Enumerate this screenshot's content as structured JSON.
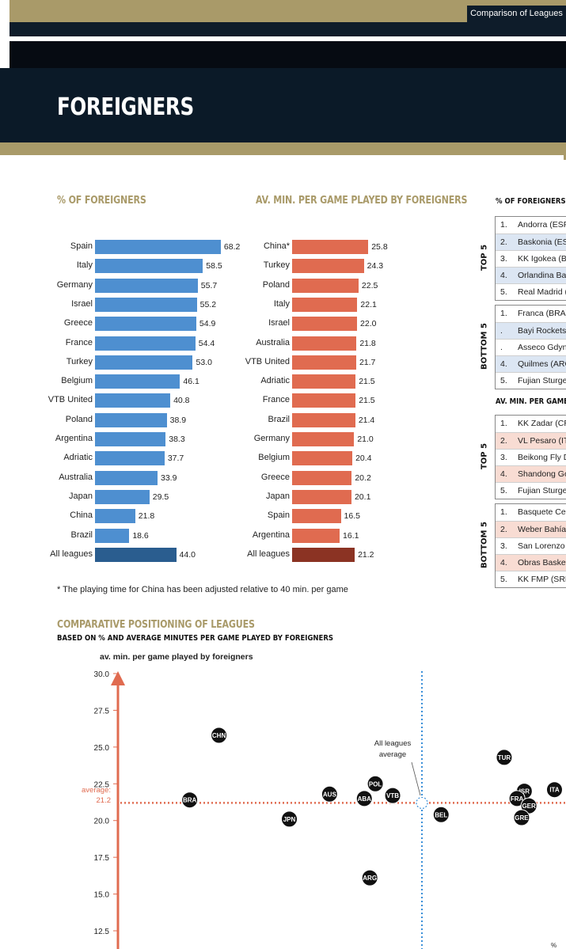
{
  "header": {
    "section": "Comparison of Leagues",
    "title": "FOREIGNERS"
  },
  "colors": {
    "blue": "#4e8fd0",
    "blue_dark": "#2a5d8f",
    "orange": "#e06b50",
    "orange_dark": "#8b3323",
    "gold": "#a99a69",
    "navy": "#0b1a28"
  },
  "chart_data": [
    {
      "type": "bar",
      "title": "% OF FOREIGNERS",
      "orientation": "horizontal",
      "categories": [
        "Spain",
        "Italy",
        "Germany",
        "Israel",
        "Greece",
        "France",
        "Turkey",
        "Belgium",
        "VTB United",
        "Poland",
        "Argentina",
        "Adriatic",
        "Australia",
        "Japan",
        "China",
        "Brazil",
        "All leagues"
      ],
      "values": [
        68.2,
        58.5,
        55.7,
        55.2,
        54.9,
        54.4,
        53.0,
        46.1,
        40.8,
        38.9,
        38.3,
        37.7,
        33.9,
        29.5,
        21.8,
        18.6,
        44.0
      ],
      "value_labels": [
        "68.2",
        "58.5",
        "55.7",
        "55.2",
        "54.9",
        "54.4",
        "53.0",
        "46.1",
        "40.8",
        "38.9",
        "38.3",
        "37.7",
        "33.9",
        "29.5",
        "21.8",
        "18.6",
        "44.0"
      ],
      "highlight": "All leagues"
    },
    {
      "type": "bar",
      "title": "AV. MIN. PER GAME PLAYED BY FOREIGNERS",
      "orientation": "horizontal",
      "categories": [
        "China*",
        "Turkey",
        "Poland",
        "Italy",
        "Israel",
        "Australia",
        "VTB United",
        "Adriatic",
        "France",
        "Brazil",
        "Germany",
        "Belgium",
        "Greece",
        "Japan",
        "Spain",
        "Argentina",
        "All leagues"
      ],
      "values": [
        25.8,
        24.3,
        22.5,
        22.1,
        22.0,
        21.8,
        21.7,
        21.5,
        21.5,
        21.4,
        21.0,
        20.4,
        20.2,
        20.1,
        16.5,
        16.1,
        21.2
      ],
      "value_labels": [
        "25.8",
        "24.3",
        "22.5",
        "22.1",
        "22.0",
        "21.8",
        "21.7",
        "21.5",
        "21.5",
        "21.4",
        "21.0",
        "20.4",
        "20.2",
        "20.1",
        "16.5",
        "16.1",
        "21.2"
      ],
      "highlight": "All leagues"
    },
    {
      "type": "scatter",
      "title": "COMPARATIVE POSITIONING OF LEAGUES",
      "subtitle": "BASED ON % AND AVERAGE MINUTES PER GAME PLAYED BY FOREIGNERS",
      "ylabel": "av. min. per game played by foreigners",
      "ylim": [
        12.5,
        30.0
      ],
      "yticks": [
        "30.0",
        "27.5",
        "25.0",
        "22.5",
        "20.0",
        "17.5",
        "15.0",
        "12.5"
      ],
      "average_label": "average:",
      "average_value": "21.2",
      "average_y": 21.2,
      "average_x": 44.0,
      "average_annotation": [
        "All leagues",
        "average"
      ],
      "points": [
        {
          "label": "CHN",
          "x": 21.8,
          "y": 25.8
        },
        {
          "label": "BRA",
          "x": 18.6,
          "y": 21.4
        },
        {
          "label": "JPN",
          "x": 29.5,
          "y": 20.1
        },
        {
          "label": "AUS",
          "x": 33.9,
          "y": 21.8
        },
        {
          "label": "POL",
          "x": 38.9,
          "y": 22.5
        },
        {
          "label": "ABA",
          "x": 37.7,
          "y": 21.5
        },
        {
          "label": "VTB",
          "x": 40.8,
          "y": 21.7
        },
        {
          "label": "ARG",
          "x": 38.3,
          "y": 16.1
        },
        {
          "label": "BEL",
          "x": 46.1,
          "y": 20.4
        },
        {
          "label": "TUR",
          "x": 53.0,
          "y": 24.3
        },
        {
          "label": "ISR",
          "x": 55.2,
          "y": 22.0
        },
        {
          "label": "FRA",
          "x": 54.4,
          "y": 21.5
        },
        {
          "label": "GER",
          "x": 55.7,
          "y": 21.0
        },
        {
          "label": "GRE",
          "x": 54.9,
          "y": 20.2
        },
        {
          "label": "ITA",
          "x": 58.5,
          "y": 22.1
        }
      ]
    }
  ],
  "tables": {
    "foreigners": {
      "title": "% OF FOREIGNERS",
      "top_label": "TOP 5",
      "bottom_label": "BOTTOM 5",
      "top": [
        {
          "rank": "1.",
          "name": "Andorra (ESP)"
        },
        {
          "rank": "2.",
          "name": "Baskonia (ESP)"
        },
        {
          "rank": "3.",
          "name": "KK Igokea (BIH)"
        },
        {
          "rank": "4.",
          "name": "Orlandina Bask"
        },
        {
          "rank": "5.",
          "name": "Real Madrid (ES"
        }
      ],
      "bottom": [
        {
          "rank": "1.",
          "name": "Franca (BRA)"
        },
        {
          "rank": ".",
          "name": "Bayi Rockets (C"
        },
        {
          "rank": ".",
          "name": "Asseco Gdynia"
        },
        {
          "rank": "4.",
          "name": "Quilmes (ARG)"
        },
        {
          "rank": "5.",
          "name": "Fujian Sturgeon"
        }
      ]
    },
    "minutes": {
      "title": "AV. MIN. PER GAME P",
      "top_label": "TOP 5",
      "bottom_label": "BOTTOM 5",
      "top": [
        {
          "rank": "1.",
          "name": "KK Zadar (CRO)"
        },
        {
          "rank": "2.",
          "name": "VL Pesaro (ITA)"
        },
        {
          "rank": "3.",
          "name": "Beikong Fly Dra"
        },
        {
          "rank": "4.",
          "name": "Shandong Gold"
        },
        {
          "rank": "5.",
          "name": "Fujian Sturgeon"
        }
      ],
      "bottom": [
        {
          "rank": "1.",
          "name": "Basquete Ceare"
        },
        {
          "rank": "2.",
          "name": "Weber Bahía (A"
        },
        {
          "rank": "3.",
          "name": "San Lorenzo (Al"
        },
        {
          "rank": "4.",
          "name": "Obras Basket (A"
        },
        {
          "rank": "5.",
          "name": "KK FMP (SRB)"
        }
      ]
    }
  },
  "footnote": "* The playing time for China has been adjusted relative to 40 min. per game",
  "corner_text": "%"
}
